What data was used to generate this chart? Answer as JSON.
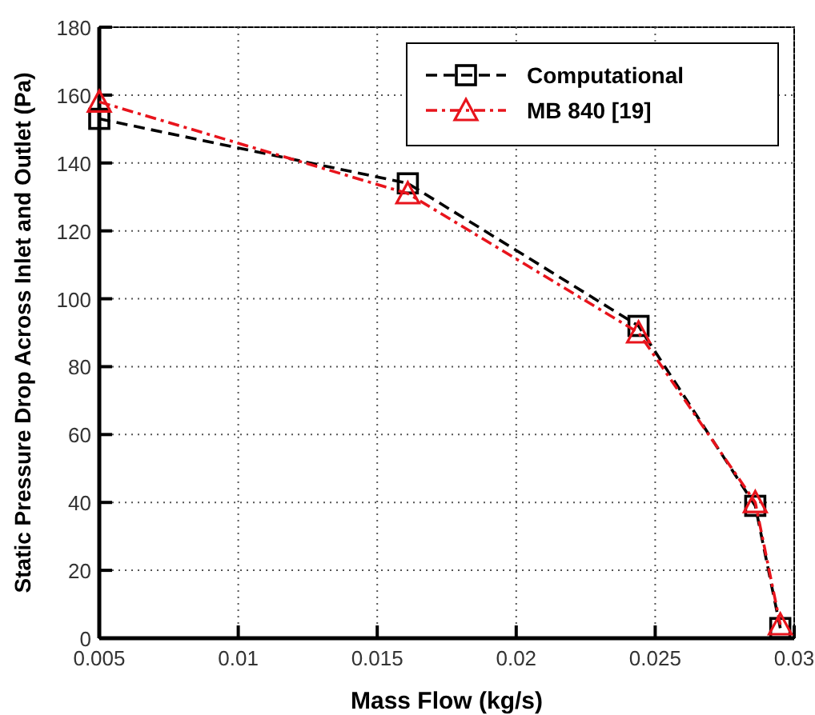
{
  "chart_data": {
    "type": "line",
    "xlabel": "Mass Flow (kg/s)",
    "ylabel": "Static Pressure Drop Across Inlet and Outlet (Pa)",
    "x": [
      0.005,
      0.0161,
      0.0244,
      0.0286,
      0.0295
    ],
    "series": [
      {
        "name": "Computational",
        "color": "#000000",
        "values": [
          153,
          134,
          92,
          39,
          3
        ],
        "marker": "square",
        "line_style": "dashed"
      },
      {
        "name": "MB 840 [19]",
        "color": "#e8141c",
        "values": [
          158,
          131,
          90,
          40,
          4
        ],
        "marker": "triangle",
        "line_style": "dashdot"
      }
    ],
    "xlim": [
      0.005,
      0.03
    ],
    "xticks": [
      0.005,
      0.01,
      0.015,
      0.02,
      0.025,
      0.03
    ],
    "ylim": [
      0,
      180
    ],
    "yticks": [
      0,
      20,
      40,
      60,
      80,
      100,
      120,
      140,
      160,
      180
    ],
    "grid": true,
    "legend": "top right"
  }
}
